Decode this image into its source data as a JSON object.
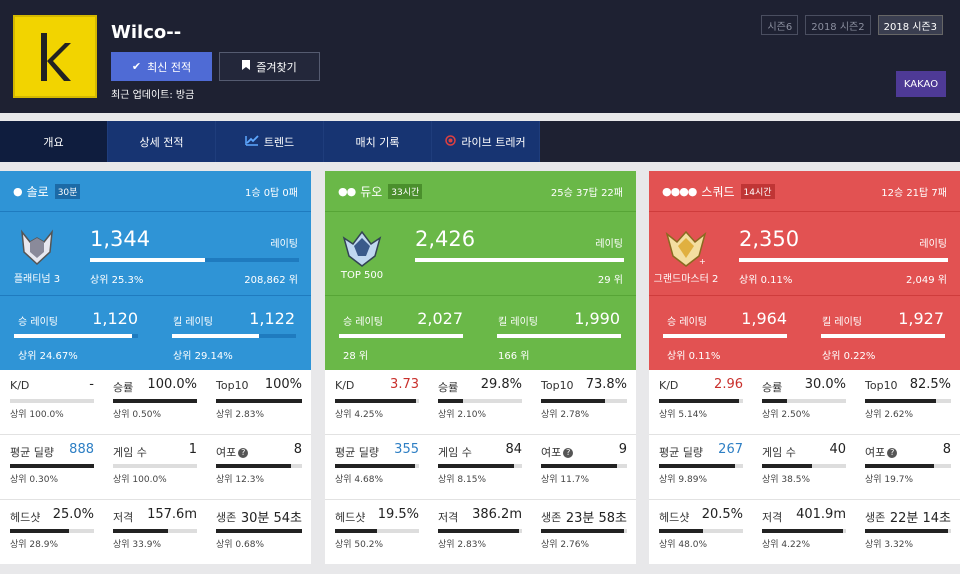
{
  "player": {
    "name": "Wilco--",
    "avatar_letter": "k",
    "refresh_label": "최신 전적",
    "favorite_label": "즐겨찾기",
    "updated": "최근 업데이트: 방금"
  },
  "seasons": [
    "시즌6",
    "2018 시즌2",
    "2018 시즌3"
  ],
  "kakao": "KAKAO",
  "nav": [
    "개요",
    "상세 전적",
    "트렌드",
    "매치 기록",
    "라이브 트레커"
  ],
  "cards": [
    {
      "mode": "솔로",
      "icons": "👤",
      "badge": "30분",
      "record": "1승 0탑 0패",
      "color": "#2f94d6",
      "dark": "#1f7bbf",
      "badge_bg": "#1c6aa6",
      "tier": "플래티넘 3",
      "rating": "1,344",
      "rating_label": "레이팅",
      "rating_fill": 0.55,
      "top_pct": "상위 25.3%",
      "rank": "208,862 위",
      "win_label": "승 레이팅",
      "win_val": "1,120",
      "win_fill": 0.95,
      "win_pct": "상위 24.67%",
      "kill_label": "킬 레이팅",
      "kill_val": "1,122",
      "kill_fill": 0.7,
      "kill_pct": "상위 29.14%",
      "stats": [
        {
          "label": "K/D",
          "value": "-",
          "pct": "상위 100.0%",
          "fill": 0.0,
          "hl": ""
        },
        {
          "label": "승률",
          "value": "100.0%",
          "pct": "상위 0.50%",
          "fill": 1.0,
          "hl": ""
        },
        {
          "label": "Top10",
          "value": "100%",
          "pct": "상위 2.83%",
          "fill": 1.0,
          "hl": ""
        },
        {
          "label": "평균 딜량",
          "value": "888",
          "pct": "상위 0.30%",
          "fill": 1.0,
          "hl": "blue"
        },
        {
          "label": "게임 수",
          "value": "1",
          "pct": "상위 100.0%",
          "fill": 0.0,
          "hl": ""
        },
        {
          "label": "여포",
          "value": "8",
          "pct": "상위 12.3%",
          "fill": 0.87,
          "hl": "",
          "q": true
        },
        {
          "label": "헤드샷",
          "value": "25.0%",
          "pct": "상위 28.9%",
          "fill": 0.7,
          "hl": ""
        },
        {
          "label": "저격",
          "value": "157.6m",
          "pct": "상위 33.9%",
          "fill": 0.66,
          "hl": ""
        },
        {
          "label": "생존",
          "value": "30분 54초",
          "pct": "상위 0.68%",
          "fill": 1.0,
          "hl": ""
        }
      ]
    },
    {
      "mode": "듀오",
      "icons": "👤👤",
      "badge": "33시간",
      "record": "25승 37탑 22패",
      "color": "#6ab848",
      "dark": "#57a536",
      "badge_bg": "#4a8f2c",
      "tier": "TOP 500",
      "rating": "2,426",
      "rating_label": "레이팅",
      "rating_fill": 1.0,
      "top_pct": "",
      "rank": "29 위",
      "win_label": "승 레이팅",
      "win_val": "2,027",
      "win_fill": 1.0,
      "win_pct": "28 위",
      "kill_label": "킬 레이팅",
      "kill_val": "1,990",
      "kill_fill": 1.0,
      "kill_pct": "166 위",
      "stats": [
        {
          "label": "K/D",
          "value": "3.73",
          "pct": "상위 4.25%",
          "fill": 0.96,
          "hl": "red"
        },
        {
          "label": "승률",
          "value": "29.8%",
          "pct": "상위 2.10%",
          "fill": 0.3,
          "hl": ""
        },
        {
          "label": "Top10",
          "value": "73.8%",
          "pct": "상위 2.78%",
          "fill": 0.74,
          "hl": ""
        },
        {
          "label": "평균 딜량",
          "value": "355",
          "pct": "상위 4.68%",
          "fill": 0.95,
          "hl": "blue"
        },
        {
          "label": "게임 수",
          "value": "84",
          "pct": "상위 8.15%",
          "fill": 0.9,
          "hl": ""
        },
        {
          "label": "여포",
          "value": "9",
          "pct": "상위 11.7%",
          "fill": 0.88,
          "hl": "",
          "q": true
        },
        {
          "label": "헤드샷",
          "value": "19.5%",
          "pct": "상위 50.2%",
          "fill": 0.5,
          "hl": ""
        },
        {
          "label": "저격",
          "value": "386.2m",
          "pct": "상위 2.83%",
          "fill": 0.97,
          "hl": ""
        },
        {
          "label": "생존",
          "value": "23분 58초",
          "pct": "상위 2.76%",
          "fill": 0.97,
          "hl": ""
        }
      ]
    },
    {
      "mode": "스쿼드",
      "icons": "👤👤👤👤",
      "badge": "14시간",
      "record": "12승 21탑 7패",
      "color": "#e25252",
      "dark": "#cf3c3c",
      "badge_bg": "#c03535",
      "tier": "그랜드마스터 2",
      "rating": "2,350",
      "rating_label": "레이팅",
      "rating_fill": 1.0,
      "top_pct": "상위 0.11%",
      "rank": "2,049 위",
      "win_label": "승 레이팅",
      "win_val": "1,964",
      "win_fill": 1.0,
      "win_pct": "상위 0.11%",
      "kill_label": "킬 레이팅",
      "kill_val": "1,927",
      "kill_fill": 1.0,
      "kill_pct": "상위 0.22%",
      "stats": [
        {
          "label": "K/D",
          "value": "2.96",
          "pct": "상위 5.14%",
          "fill": 0.95,
          "hl": "red"
        },
        {
          "label": "승률",
          "value": "30.0%",
          "pct": "상위 2.50%",
          "fill": 0.3,
          "hl": ""
        },
        {
          "label": "Top10",
          "value": "82.5%",
          "pct": "상위 2.62%",
          "fill": 0.82,
          "hl": ""
        },
        {
          "label": "평균 딜량",
          "value": "267",
          "pct": "상위 9.89%",
          "fill": 0.9,
          "hl": "blue"
        },
        {
          "label": "게임 수",
          "value": "40",
          "pct": "상위 38.5%",
          "fill": 0.6,
          "hl": ""
        },
        {
          "label": "여포",
          "value": "8",
          "pct": "상위 19.7%",
          "fill": 0.8,
          "hl": "",
          "q": true
        },
        {
          "label": "헤드샷",
          "value": "20.5%",
          "pct": "상위 48.0%",
          "fill": 0.52,
          "hl": ""
        },
        {
          "label": "저격",
          "value": "401.9m",
          "pct": "상위 4.22%",
          "fill": 0.96,
          "hl": ""
        },
        {
          "label": "생존",
          "value": "22분 14초",
          "pct": "상위 3.32%",
          "fill": 0.97,
          "hl": ""
        }
      ]
    }
  ]
}
